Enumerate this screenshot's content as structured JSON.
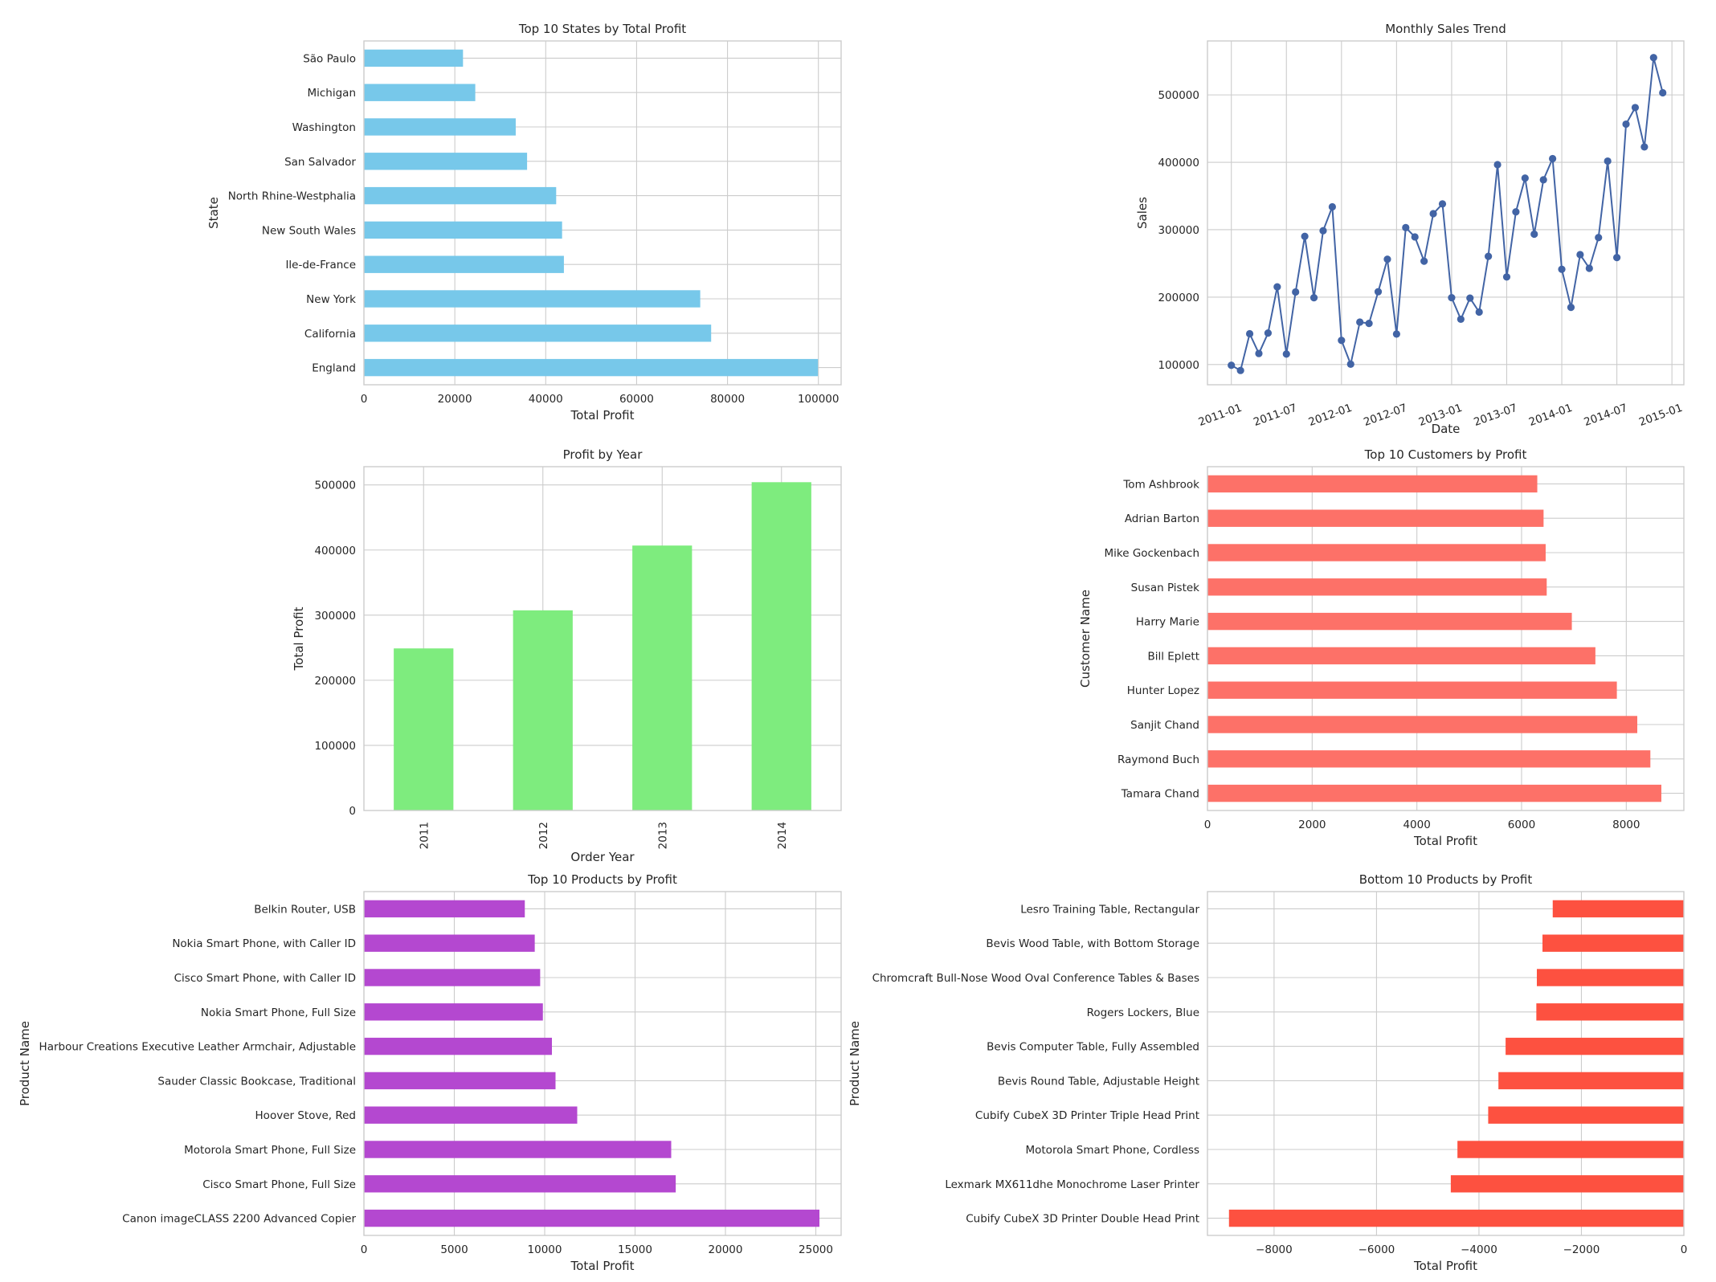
{
  "chart_data": [
    {
      "type": "bar",
      "orientation": "horizontal",
      "title": "Top 10 States by Total Profit",
      "xlabel": "Total Profit",
      "ylabel": "State",
      "color": "#77c8ea",
      "categories": [
        "São Paulo",
        "Michigan",
        "Washington",
        "San Salvador",
        "North Rhine-Westphalia",
        "New South Wales",
        "Ile-de-France",
        "New York",
        "California",
        "England"
      ],
      "values": [
        21800,
        24500,
        33400,
        35900,
        42300,
        43600,
        44000,
        74000,
        76400,
        99900
      ],
      "xlim": [
        0,
        105000
      ],
      "xticks": [
        0,
        20000,
        40000,
        60000,
        80000,
        100000
      ],
      "xtick_labels": [
        "0",
        "20000",
        "40000",
        "60000",
        "80000",
        "100000"
      ],
      "grid": true
    },
    {
      "type": "line",
      "title": "Monthly Sales Trend",
      "xlabel": "Date",
      "ylabel": "Sales",
      "color": "#4264a5",
      "x": [
        "2011-01",
        "2011-02",
        "2011-03",
        "2011-04",
        "2011-05",
        "2011-06",
        "2011-07",
        "2011-08",
        "2011-09",
        "2011-10",
        "2011-11",
        "2011-12",
        "2012-01",
        "2012-02",
        "2012-03",
        "2012-04",
        "2012-05",
        "2012-06",
        "2012-07",
        "2012-08",
        "2012-09",
        "2012-10",
        "2012-11",
        "2012-12",
        "2013-01",
        "2013-02",
        "2013-03",
        "2013-04",
        "2013-05",
        "2013-06",
        "2013-07",
        "2013-08",
        "2013-09",
        "2013-10",
        "2013-11",
        "2013-12",
        "2014-01",
        "2014-02",
        "2014-03",
        "2014-04",
        "2014-05",
        "2014-06",
        "2014-07",
        "2014-08",
        "2014-09",
        "2014-10",
        "2014-11",
        "2014-12"
      ],
      "y": [
        98900,
        91200,
        145700,
        116400,
        146700,
        215200,
        115600,
        207600,
        290200,
        199100,
        298500,
        333900,
        135800,
        100500,
        163000,
        161000,
        208000,
        256200,
        145200,
        303100,
        289300,
        253400,
        323800,
        338300,
        199200,
        167200,
        198600,
        177800,
        260500,
        396500,
        229900,
        326500,
        376600,
        293400,
        374000,
        405500,
        241300,
        184800,
        263100,
        242800,
        288400,
        401800,
        258700,
        456600,
        481200,
        422800,
        555300,
        503100
      ],
      "ylim": [
        70000,
        580000
      ],
      "yticks": [
        100000,
        200000,
        300000,
        400000,
        500000
      ],
      "ytick_labels": [
        "100000",
        "200000",
        "300000",
        "400000",
        "500000"
      ],
      "xtick_labels": [
        "2011-01",
        "2011-07",
        "2012-01",
        "2012-07",
        "2013-01",
        "2013-07",
        "2014-01",
        "2014-07",
        "2015-01"
      ],
      "grid": true
    },
    {
      "type": "bar",
      "orientation": "vertical",
      "title": "Profit by Year",
      "xlabel": "Order Year",
      "ylabel": "Total Profit",
      "color": "#7eec7e",
      "categories": [
        "2011",
        "2012",
        "2013",
        "2014"
      ],
      "values": [
        248900,
        307400,
        406900,
        504200
      ],
      "ylim": [
        0,
        528000
      ],
      "yticks": [
        0,
        100000,
        200000,
        300000,
        400000,
        500000
      ],
      "ytick_labels": [
        "0",
        "100000",
        "200000",
        "300000",
        "400000",
        "500000"
      ],
      "grid": true
    },
    {
      "type": "bar",
      "orientation": "horizontal",
      "title": "Top 10 Customers by Profit",
      "xlabel": "Total Profit",
      "ylabel": "Customer Name",
      "color": "#fd7168",
      "categories": [
        "Tom Ashbrook",
        "Adrian Barton",
        "Mike Gockenbach",
        "Susan Pistek",
        "Harry Marie",
        "Bill Eplett",
        "Hunter Lopez",
        "Sanjit Chand",
        "Raymond Buch",
        "Tamara Chand"
      ],
      "values": [
        6300,
        6420,
        6460,
        6480,
        6960,
        7410,
        7820,
        8210,
        8460,
        8670
      ],
      "xlim": [
        0,
        9100
      ],
      "xticks": [
        0,
        2000,
        4000,
        6000,
        8000
      ],
      "xtick_labels": [
        "0",
        "2000",
        "4000",
        "6000",
        "8000"
      ],
      "grid": true
    },
    {
      "type": "bar",
      "orientation": "horizontal",
      "title": "Top 10 Products by Profit",
      "xlabel": "Total Profit",
      "ylabel": "Product Name",
      "color": "#b448d0",
      "categories": [
        "Belkin Router, USB",
        "Nokia Smart Phone, with Caller ID",
        "Cisco Smart Phone, with Caller ID",
        "Nokia Smart Phone, Full Size",
        "Harbour Creations Executive Leather Armchair, Adjustable",
        "Sauder Classic Bookcase, Traditional",
        "Hoover Stove, Red",
        "Motorola Smart Phone, Full Size",
        "Cisco Smart Phone, Full Size",
        "Canon imageCLASS 2200 Advanced Copier"
      ],
      "values": [
        8900,
        9450,
        9750,
        9900,
        10400,
        10600,
        11800,
        17000,
        17250,
        25200
      ],
      "xlim": [
        0,
        26400
      ],
      "xticks": [
        0,
        5000,
        10000,
        15000,
        20000,
        25000
      ],
      "xtick_labels": [
        "0",
        "5000",
        "10000",
        "15000",
        "20000",
        "25000"
      ],
      "grid": true
    },
    {
      "type": "bar",
      "orientation": "horizontal",
      "title": "Bottom 10 Products by Profit",
      "xlabel": "Total Profit",
      "ylabel": "Product Name",
      "color": "#fd5140",
      "categories": [
        "Lesro Training Table, Rectangular",
        "Bevis Wood Table, with Bottom Storage",
        "Chromcraft Bull-Nose Wood Oval Conference Tables & Bases",
        "Rogers Lockers, Blue",
        "Bevis Computer Table, Fully Assembled",
        "Bevis Round Table, Adjustable Height",
        "Cubify CubeX 3D Printer Triple Head Print",
        "Motorola Smart Phone, Cordless",
        "Lexmark MX611dhe Monochrome Laser Printer",
        "Cubify CubeX 3D Printer Double Head Print"
      ],
      "values": [
        -2560,
        -2760,
        -2870,
        -2880,
        -3480,
        -3620,
        -3820,
        -4420,
        -4550,
        -8880
      ],
      "xlim": [
        -9300,
        0
      ],
      "xticks": [
        -8000,
        -6000,
        -4000,
        -2000,
        0
      ],
      "xtick_labels": [
        "−8000",
        "−6000",
        "−4000",
        "−2000",
        "0"
      ],
      "grid": true
    }
  ]
}
